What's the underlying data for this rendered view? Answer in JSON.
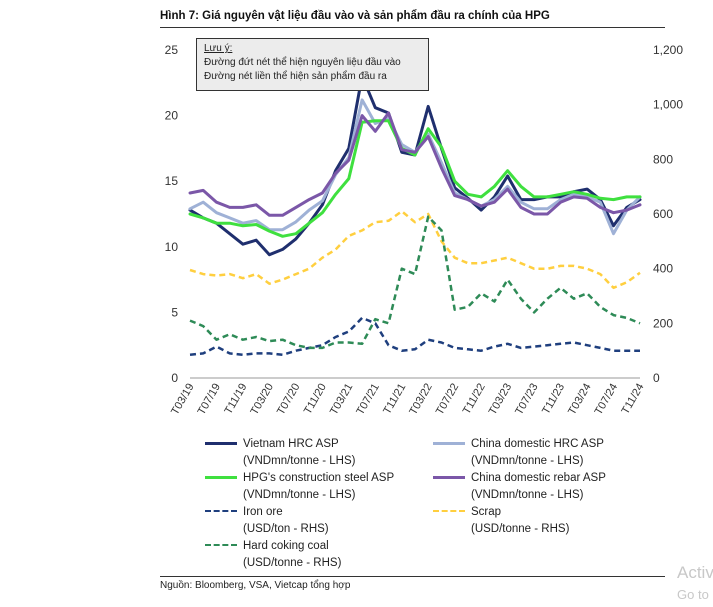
{
  "figure": {
    "title": "Hình 7: Giá nguyên vật liệu đầu vào và sản phẩm đầu ra chính của HPG",
    "source": "Nguồn: Bloomberg, VSA, Vietcap tổng hợp"
  },
  "note": {
    "title": "Lưu ý:",
    "line1": "Đường đứt nét thể hiện nguyên liệu đầu vào",
    "line2": "Đường nét liền thể hiện sản phẩm đầu ra"
  },
  "watermark": {
    "line1": "Activate Windows",
    "line2": "Go to Settings to activate Windows."
  },
  "chart_data": {
    "type": "line",
    "x": [
      "T03/19",
      "T05/19",
      "T07/19",
      "T09/19",
      "T11/19",
      "T01/20",
      "T03/20",
      "T05/20",
      "T07/20",
      "T09/20",
      "T11/20",
      "T01/21",
      "T03/21",
      "T05/21",
      "T07/21",
      "T09/21",
      "T11/21",
      "T01/22",
      "T03/22",
      "T05/22",
      "T07/22",
      "T09/22",
      "T11/22",
      "T01/23",
      "T03/23",
      "T05/23",
      "T07/23",
      "T09/23",
      "T11/23",
      "T01/24",
      "T03/24",
      "T05/24",
      "T07/24",
      "T09/24",
      "T11/24"
    ],
    "xticks": [
      "T03/19",
      "T07/19",
      "T11/19",
      "T03/20",
      "T07/20",
      "T11/20",
      "T03/21",
      "T07/21",
      "T11/21",
      "T03/22",
      "T07/22",
      "T11/22",
      "T03/23",
      "T07/23",
      "T11/23",
      "T03/24",
      "T07/24",
      "T11/24"
    ],
    "left_axis": {
      "ylim": [
        0,
        25
      ],
      "ticks": [
        "0",
        "5",
        "10",
        "15",
        "20",
        "25"
      ]
    },
    "right_axis": {
      "ylim": [
        0,
        1200
      ],
      "ticks": [
        "0",
        "200",
        "400",
        "600",
        "800",
        "1,000",
        "1,200"
      ]
    },
    "grid": false,
    "legend_position": "bottom",
    "series": [
      {
        "name": "Vietnam HRC ASP",
        "unit": "(VNDmn/tonne - LHS)",
        "axis": "left",
        "style": "solid",
        "color": "#1f2f6e",
        "values": [
          12.8,
          12.2,
          11.8,
          11.0,
          10.2,
          10.5,
          9.4,
          9.8,
          10.6,
          11.8,
          13.2,
          15.8,
          17.5,
          23.0,
          20.6,
          20.2,
          17.2,
          17.0,
          20.7,
          17.5,
          14.5,
          13.7,
          12.8,
          13.8,
          15.4,
          13.6,
          13.6,
          13.8,
          13.8,
          14.2,
          14.4,
          13.6,
          11.6,
          13.0,
          13.6
        ]
      },
      {
        "name": "China domestic HRC ASP",
        "unit": "(VNDmn/tonne - LHS)",
        "axis": "left",
        "style": "solid",
        "color": "#9fb1d6",
        "values": [
          12.9,
          13.4,
          12.6,
          12.2,
          11.8,
          12.0,
          11.3,
          11.3,
          11.9,
          12.8,
          13.5,
          15.5,
          16.8,
          21.2,
          19.4,
          19.8,
          17.8,
          17.2,
          18.6,
          16.4,
          14.1,
          13.6,
          13.1,
          13.6,
          14.6,
          13.4,
          12.9,
          12.9,
          13.6,
          14.0,
          13.8,
          13.4,
          11.0,
          12.8,
          13.8
        ]
      },
      {
        "name": "HPG's construction steel ASP",
        "unit": "(VNDmn/tonne - LHS)",
        "axis": "left",
        "style": "solid",
        "color": "#3fe03f",
        "values": [
          12.5,
          12.2,
          11.8,
          11.8,
          11.6,
          11.7,
          11.2,
          10.8,
          11.0,
          11.8,
          12.6,
          14.0,
          15.2,
          19.5,
          19.6,
          19.6,
          17.5,
          17.0,
          19.0,
          17.6,
          15.0,
          14.0,
          13.8,
          14.6,
          15.8,
          14.6,
          13.8,
          13.8,
          14.0,
          14.2,
          14.0,
          13.7,
          13.6,
          13.8,
          13.8
        ]
      },
      {
        "name": "China domestic rebar ASP",
        "unit": "(VNDmn/tonne - LHS)",
        "axis": "left",
        "style": "solid",
        "color": "#7b57a8",
        "values": [
          14.1,
          14.3,
          13.4,
          13.0,
          13.0,
          13.2,
          12.4,
          12.4,
          13.0,
          13.6,
          14.1,
          15.6,
          16.6,
          20.0,
          18.8,
          20.2,
          17.4,
          17.2,
          18.4,
          16.0,
          13.9,
          13.6,
          13.1,
          13.4,
          14.4,
          13.0,
          12.5,
          12.5,
          13.4,
          13.8,
          13.7,
          13.0,
          12.6,
          12.8,
          13.2
        ]
      },
      {
        "name": "Iron ore",
        "unit": "(USD/ton - RHS)",
        "axis": "right",
        "style": "dashed",
        "color": "#1f3f7e",
        "values": [
          85,
          90,
          115,
          90,
          85,
          90,
          90,
          85,
          100,
          110,
          120,
          150,
          170,
          220,
          200,
          120,
          100,
          105,
          140,
          130,
          110,
          105,
          100,
          115,
          125,
          110,
          115,
          120,
          125,
          130,
          120,
          110,
          100,
          100,
          100
        ]
      },
      {
        "name": "Scrap",
        "unit": "(USD/tonne - RHS)",
        "axis": "right",
        "style": "dashed",
        "color": "#ffcf3f",
        "values": [
          395,
          380,
          375,
          380,
          365,
          380,
          345,
          360,
          380,
          400,
          440,
          470,
          520,
          540,
          570,
          575,
          610,
          570,
          600,
          500,
          440,
          420,
          420,
          430,
          440,
          420,
          400,
          400,
          410,
          410,
          400,
          380,
          330,
          350,
          385
        ]
      },
      {
        "name": "Hard coking coal",
        "unit": "(USD/tonne - RHS)",
        "axis": "right",
        "style": "dashed",
        "color": "#2e8b57",
        "values": [
          210,
          190,
          140,
          160,
          140,
          150,
          135,
          140,
          120,
          110,
          110,
          130,
          130,
          125,
          215,
          200,
          400,
          380,
          590,
          540,
          250,
          260,
          310,
          280,
          360,
          290,
          240,
          290,
          330,
          290,
          310,
          260,
          230,
          220,
          200
        ]
      }
    ]
  }
}
